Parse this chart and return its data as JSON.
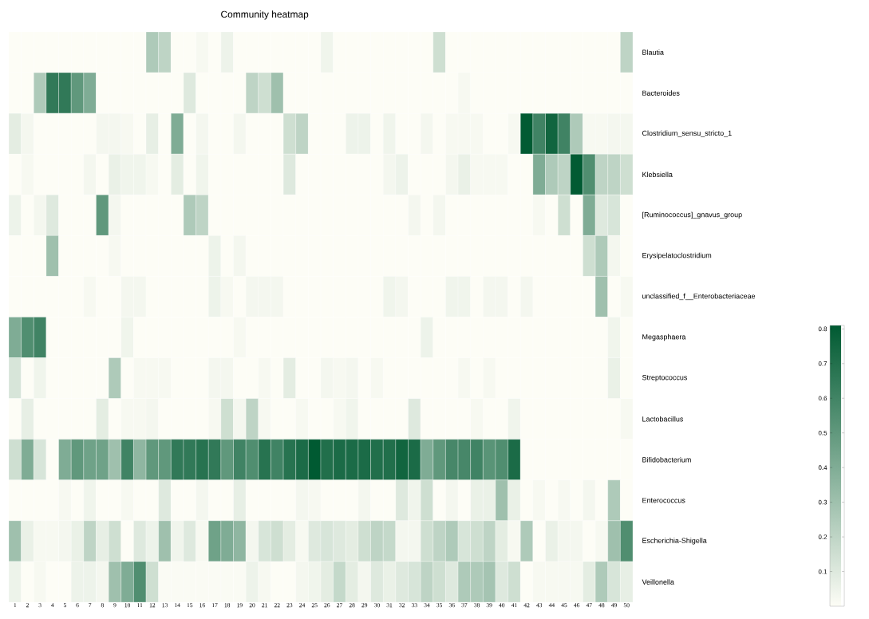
{
  "chart_data": {
    "type": "heatmap",
    "title": "Community heatmap",
    "categories": [
      "1",
      "2",
      "3",
      "4",
      "5",
      "6",
      "7",
      "8",
      "9",
      "10",
      "11",
      "12",
      "13",
      "14",
      "15",
      "16",
      "17",
      "18",
      "19",
      "20",
      "21",
      "22",
      "23",
      "24",
      "25",
      "26",
      "27",
      "28",
      "29",
      "30",
      "31",
      "32",
      "33",
      "34",
      "35",
      "36",
      "37",
      "38",
      "39",
      "40",
      "41",
      "42",
      "43",
      "44",
      "45",
      "46",
      "47",
      "48",
      "49",
      "50"
    ],
    "y_categories": [
      "Blautia",
      "Bacteroides",
      "Clostridium_sensu_stricto_1",
      "Klebsiella",
      "[Ruminococcus]_gnavus_group",
      "Erysipelatoclostridium",
      "unclassified_f__Enterobacteriaceae",
      "Megasphaera",
      "Streptococcus",
      "Lactobacillus",
      "Bifidobacterium",
      "Enterococcus",
      "Escherichia-Shigella",
      "Veillonella"
    ],
    "cells": [
      [
        0,
        0,
        0,
        0,
        0,
        0,
        0,
        0,
        0,
        0,
        0,
        0.25,
        0.2,
        0,
        0,
        0.02,
        0,
        0.05,
        0,
        0,
        0,
        0,
        0,
        0,
        0,
        0.04,
        0,
        0,
        0,
        0,
        0,
        0,
        0,
        0,
        0.15,
        0,
        0,
        0,
        0,
        0,
        0,
        0,
        0,
        0,
        0,
        0,
        0,
        0,
        0,
        0.2
      ],
      [
        0,
        0,
        0.25,
        0.65,
        0.65,
        0.5,
        0.4,
        0,
        0,
        0,
        0,
        0,
        0,
        0,
        0.1,
        0,
        0,
        0,
        0,
        0.2,
        0.15,
        0.3,
        0,
        0,
        0,
        0,
        0,
        0,
        0,
        0,
        0,
        0,
        0,
        0,
        0,
        0,
        0.02,
        0,
        0,
        0,
        0,
        0,
        0,
        0,
        0,
        0,
        0,
        0,
        0,
        0
      ],
      [
        0.08,
        0.03,
        0,
        0,
        0,
        0,
        0,
        0.03,
        0.03,
        0.02,
        0,
        0.07,
        0,
        0.4,
        0,
        0.03,
        0,
        0,
        0.03,
        0,
        0,
        0,
        0.15,
        0.2,
        0,
        0,
        0,
        0.05,
        0.05,
        0,
        0.04,
        0,
        0,
        0.03,
        0,
        0.02,
        0.02,
        0.02,
        0,
        0,
        0.02,
        0.8,
        0.6,
        0.75,
        0.6,
        0.25,
        0.02,
        0.02,
        0.03,
        0.03
      ],
      [
        0,
        0.02,
        0,
        0,
        0,
        0,
        0.03,
        0,
        0.06,
        0.04,
        0.04,
        0.02,
        0,
        0.08,
        0,
        0.04,
        0,
        0,
        0,
        0,
        0,
        0,
        0.1,
        0,
        0,
        0,
        0,
        0,
        0,
        0,
        0.03,
        0.05,
        0,
        0,
        0,
        0.03,
        0.06,
        0.02,
        0.02,
        0.02,
        0,
        0,
        0.4,
        0.25,
        0.2,
        0.8,
        0.55,
        0.2,
        0.2,
        0.15
      ],
      [
        0.05,
        0,
        0.03,
        0.1,
        0,
        0,
        0,
        0.5,
        0.03,
        0,
        0,
        0,
        0,
        0,
        0.25,
        0.2,
        0,
        0,
        0,
        0,
        0,
        0,
        0,
        0,
        0,
        0,
        0,
        0,
        0,
        0,
        0,
        0,
        0.03,
        0,
        0.03,
        0,
        0,
        0,
        0,
        0,
        0,
        0,
        0.02,
        0,
        0.15,
        0,
        0.4,
        0.1,
        0.12,
        0
      ],
      [
        0,
        0,
        0,
        0.3,
        0,
        0,
        0,
        0,
        0.02,
        0,
        0,
        0,
        0,
        0,
        0,
        0,
        0.05,
        0,
        0.03,
        0,
        0,
        0,
        0,
        0,
        0,
        0,
        0,
        0,
        0,
        0,
        0,
        0,
        0,
        0,
        0,
        0,
        0,
        0,
        0,
        0,
        0,
        0,
        0,
        0,
        0,
        0,
        0.15,
        0.25,
        0.03,
        0
      ],
      [
        0,
        0,
        0,
        0,
        0,
        0,
        0.02,
        0,
        0,
        0.03,
        0.03,
        0,
        0,
        0,
        0,
        0,
        0.05,
        0.02,
        0,
        0.03,
        0.03,
        0.03,
        0,
        0,
        0,
        0,
        0,
        0,
        0,
        0,
        0.04,
        0.03,
        0,
        0,
        0,
        0.04,
        0.04,
        0,
        0.03,
        0.03,
        0,
        0.03,
        0,
        0,
        0,
        0,
        0,
        0.3,
        0,
        0.02
      ],
      [
        0.4,
        0.55,
        0.6,
        0,
        0,
        0,
        0,
        0,
        0,
        0.04,
        0,
        0,
        0,
        0,
        0,
        0,
        0,
        0,
        0.02,
        0,
        0,
        0,
        0,
        0,
        0,
        0,
        0,
        0,
        0,
        0,
        0,
        0,
        0,
        0.05,
        0,
        0,
        0,
        0,
        0,
        0,
        0,
        0,
        0,
        0,
        0,
        0,
        0,
        0,
        0.04,
        0
      ],
      [
        0.12,
        0,
        0.04,
        0,
        0,
        0,
        0,
        0,
        0.25,
        0,
        0.02,
        0.02,
        0.02,
        0,
        0,
        0,
        0.03,
        0.03,
        0,
        0,
        0.02,
        0,
        0.08,
        0,
        0,
        0.03,
        0.02,
        0.03,
        0,
        0.02,
        0,
        0,
        0,
        0,
        0,
        0,
        0.02,
        0,
        0.02,
        0,
        0,
        0,
        0,
        0,
        0,
        0,
        0,
        0,
        0.06,
        0
      ],
      [
        0,
        0.07,
        0,
        0,
        0,
        0,
        0,
        0.08,
        0,
        0.02,
        0.02,
        0.03,
        0,
        0,
        0,
        0,
        0.02,
        0.15,
        0.03,
        0.2,
        0.02,
        0,
        0,
        0.02,
        0,
        0,
        0.02,
        0.04,
        0,
        0,
        0,
        0,
        0.1,
        0,
        0,
        0,
        0,
        0.02,
        0,
        0,
        0.04,
        0,
        0,
        0,
        0,
        0,
        0,
        0,
        0,
        0.02
      ],
      [
        0.15,
        0.4,
        0.12,
        0,
        0.4,
        0.5,
        0.45,
        0.45,
        0.3,
        0.6,
        0.35,
        0.5,
        0.5,
        0.65,
        0.65,
        0.68,
        0.65,
        0.5,
        0.6,
        0.55,
        0.68,
        0.6,
        0.68,
        0.72,
        0.83,
        0.7,
        0.72,
        0.72,
        0.72,
        0.7,
        0.7,
        0.75,
        0.72,
        0.4,
        0.5,
        0.58,
        0.58,
        0.6,
        0.52,
        0.55,
        0.72,
        0,
        0,
        0,
        0,
        0,
        0,
        0,
        0,
        0
      ],
      [
        0,
        0,
        0,
        0,
        0.02,
        0,
        0.04,
        0,
        0,
        0.02,
        0,
        0,
        0.1,
        0,
        0,
        0.03,
        0,
        0,
        0.07,
        0,
        0,
        0,
        0,
        0.03,
        0.02,
        0,
        0,
        0,
        0.03,
        0,
        0,
        0.1,
        0.04,
        0.15,
        0,
        0.03,
        0,
        0.06,
        0.06,
        0.3,
        0.06,
        0,
        0.02,
        0,
        0.02,
        0,
        0.03,
        0,
        0.25,
        0
      ],
      [
        0.3,
        0.06,
        0.02,
        0.02,
        0.03,
        0.06,
        0.2,
        0.07,
        0.15,
        0,
        0.1,
        0.05,
        0.3,
        0.04,
        0.1,
        0.02,
        0.45,
        0.4,
        0.35,
        0.03,
        0.12,
        0.15,
        0.08,
        0.02,
        0.1,
        0.12,
        0.1,
        0.08,
        0.15,
        0.2,
        0.18,
        0.03,
        0.03,
        0.15,
        0.2,
        0.25,
        0.12,
        0.15,
        0.2,
        0.08,
        0.02,
        0.25,
        0,
        0.06,
        0.03,
        0.03,
        0,
        0.02,
        0.3,
        0.55
      ],
      [
        0.05,
        0,
        0.02,
        0,
        0,
        0.05,
        0.05,
        0.03,
        0.3,
        0.4,
        0.55,
        0.15,
        0.01,
        0.01,
        0.01,
        0.01,
        0.01,
        0.01,
        0.01,
        0.05,
        0.02,
        0,
        0,
        0.03,
        0.04,
        0.08,
        0.18,
        0.08,
        0.03,
        0.1,
        0.06,
        0.1,
        0.12,
        0.2,
        0.15,
        0.1,
        0.25,
        0.25,
        0.28,
        0.1,
        0.15,
        0,
        0.02,
        0.02,
        0.02,
        0.02,
        0.08,
        0.25,
        0.12,
        0.07
      ]
    ],
    "clim": [
      0,
      0.81
    ],
    "cticks": [
      0.1,
      0.2,
      0.3,
      0.4,
      0.5,
      0.6,
      0.7,
      0.8
    ]
  }
}
